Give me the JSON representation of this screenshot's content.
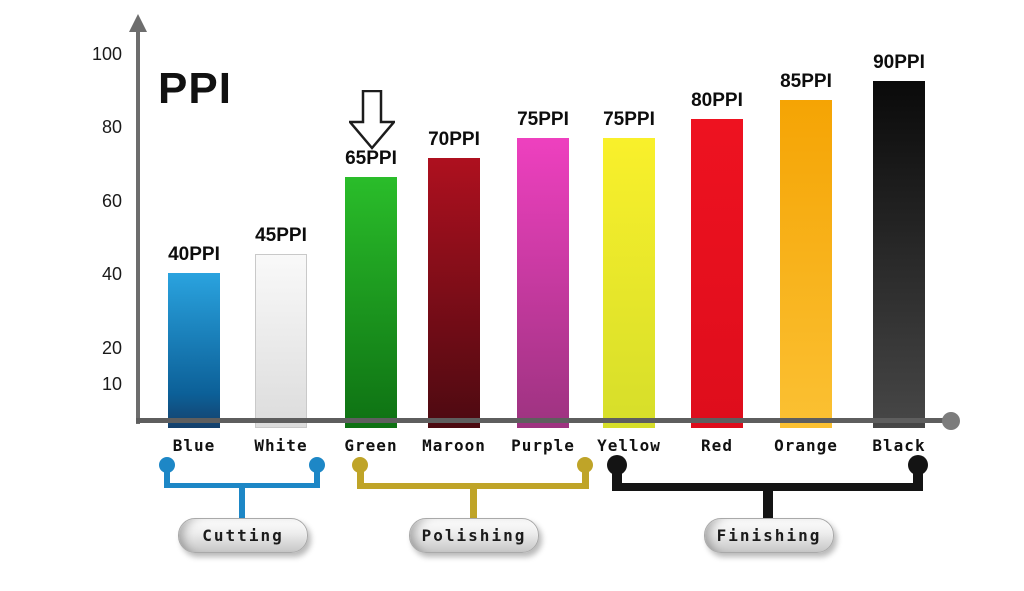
{
  "title": "PPI",
  "chart_data": {
    "type": "bar",
    "title": "PPI",
    "ylabel": "PPI",
    "categories": [
      "Blue",
      "White",
      "Green",
      "Maroon",
      "Purple",
      "Yellow",
      "Red",
      "Orange",
      "Black"
    ],
    "values": [
      40,
      45,
      65,
      70,
      75,
      75,
      80,
      85,
      90
    ],
    "bar_labels": [
      "40PPI",
      "45PPI",
      "65PPI",
      "70PPI",
      "75PPI",
      "75PPI",
      "80PPI",
      "85PPI",
      "90PPI"
    ],
    "y_ticks": [
      10,
      20,
      40,
      60,
      80,
      100
    ],
    "ylim": [
      0,
      107
    ],
    "grid": false,
    "legend": "none",
    "bar_gradients": [
      [
        "#2aa3df",
        "#0c6098",
        "#15406b"
      ],
      [
        "#f9f9f9",
        "#dcdcdc"
      ],
      [
        "#2abd2a",
        "#0e7113"
      ],
      [
        "#ae101f",
        "#4c0a11"
      ],
      [
        "#ee40bf",
        "#9d3380"
      ],
      [
        "#f9f02b",
        "#d6de2a"
      ],
      [
        "#ee1220",
        "#de0d1c"
      ],
      [
        "#f5a404",
        "#fbc133"
      ],
      [
        "#0a0a0a",
        "#474747"
      ]
    ],
    "bar_borders": [
      null,
      "#c9c9c9",
      null,
      null,
      null,
      null,
      null,
      null,
      null
    ],
    "annotation": {
      "icon": "down-arrow-icon",
      "points_to": "Green"
    },
    "axis_color": "#6d6d6d",
    "axis_end_dot_color": "#7c7c7c",
    "groups": [
      {
        "label": "Cutting",
        "from": "Blue",
        "to": "White",
        "color": "#1d87c6"
      },
      {
        "label": "Polishing",
        "from": "Green",
        "to": "Purple",
        "color": "#bfa428"
      },
      {
        "label": "Finishing",
        "from": "Yellow",
        "to": "Black",
        "color": "#141414"
      }
    ]
  }
}
